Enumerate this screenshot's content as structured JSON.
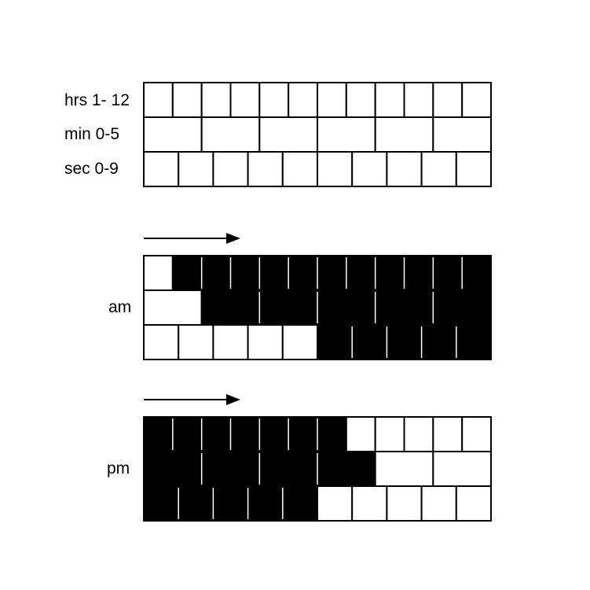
{
  "legend": {
    "labels": [
      "hrs 1- 12",
      "min 0-5",
      "sec 0-9"
    ],
    "rows": [
      {
        "name": "hours",
        "cells": 12
      },
      {
        "name": "minutes",
        "cells": 6
      },
      {
        "name": "seconds",
        "cells": 10
      }
    ]
  },
  "examples": [
    {
      "label": "am",
      "direction": "left-to-right",
      "rows": [
        {
          "name": "hours",
          "cells": 12,
          "filled": [
            1,
            2,
            3,
            4,
            5,
            6,
            7,
            8,
            9,
            10,
            11
          ]
        },
        {
          "name": "minutes",
          "cells": 6,
          "filled": [
            1,
            2,
            3,
            4,
            5
          ]
        },
        {
          "name": "seconds",
          "cells": 10,
          "filled": [
            5,
            6,
            7,
            8,
            9
          ]
        }
      ]
    },
    {
      "label": "pm",
      "direction": "left-to-right",
      "rows": [
        {
          "name": "hours",
          "cells": 12,
          "filled": [
            0,
            1,
            2,
            3,
            4,
            5,
            6
          ]
        },
        {
          "name": "minutes",
          "cells": 6,
          "filled": [
            0,
            1,
            2,
            3
          ]
        },
        {
          "name": "seconds",
          "cells": 10,
          "filled": [
            0,
            1,
            2,
            3,
            4
          ]
        }
      ]
    }
  ],
  "colors": {
    "filled": "#000000",
    "empty": "#ffffff",
    "stroke": "#000000",
    "divider": "#ffffff"
  }
}
